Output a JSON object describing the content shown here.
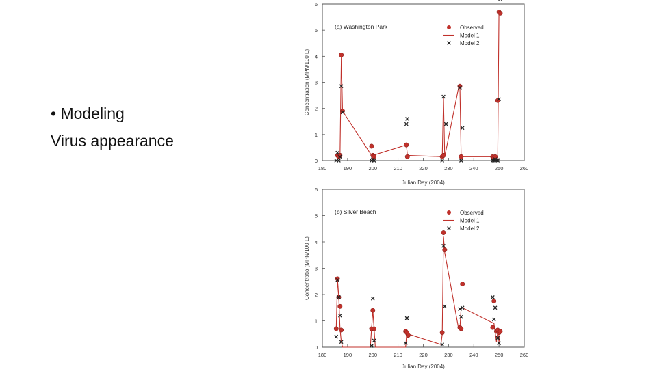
{
  "slide": {
    "bullet": "• Modeling",
    "subtitle": "Virus appearance"
  },
  "colors": {
    "observed": "#c0312b",
    "model1": "#c0312b",
    "model2": "#222222"
  },
  "chart_data": [
    {
      "type": "scatter",
      "title": "(a) Washington Park",
      "xlabel": "Julian Day (2004)",
      "ylabel": "Concentration (MPN/100 L)",
      "xlim": [
        180,
        260
      ],
      "ylim": [
        0,
        6
      ],
      "xticks": [
        180,
        190,
        200,
        210,
        220,
        230,
        240,
        250,
        260
      ],
      "yticks": [
        0,
        1,
        2,
        3,
        4,
        5,
        6
      ],
      "legend": [
        "Observed",
        "Model 1",
        "Model 2"
      ],
      "legend_position": "top-right",
      "series": [
        {
          "name": "Observed",
          "kind": "points",
          "x": [
            186,
            186.5,
            187,
            187.5,
            188,
            199.5,
            200,
            200.5,
            213.3,
            213.7,
            227.5,
            228,
            234.5,
            235,
            247.5,
            248,
            248.5,
            249.5,
            250,
            250.5
          ],
          "y": [
            0.2,
            0.15,
            0.2,
            4.05,
            1.9,
            0.55,
            0.2,
            0.15,
            0.6,
            0.15,
            0.15,
            0.2,
            2.85,
            0.15,
            0.15,
            0.1,
            0.15,
            2.3,
            5.7,
            5.65
          ]
        },
        {
          "name": "Model 1",
          "kind": "line",
          "x": [
            186,
            187,
            187.5,
            188,
            199.5,
            200,
            213.3,
            213.7,
            227.5,
            228,
            228.5,
            234,
            234.5,
            235,
            247.5,
            249.5,
            250,
            250.5
          ],
          "y": [
            0.2,
            0.2,
            4.0,
            1.9,
            0.2,
            0.2,
            0.6,
            0.2,
            0.15,
            2.4,
            0.15,
            2.8,
            2.85,
            0.15,
            0.15,
            0.1,
            5.7,
            5.7
          ]
        },
        {
          "name": "Model 2",
          "kind": "x",
          "x": [
            185.5,
            186,
            186.5,
            187,
            187.5,
            188,
            199.5,
            200,
            200.5,
            213.3,
            213.6,
            227.5,
            228,
            229,
            234.5,
            235,
            235.5,
            247.5,
            248,
            248.5,
            249,
            249.5,
            250,
            250.5
          ],
          "y": [
            0,
            0.3,
            0,
            0.15,
            2.85,
            1.85,
            0,
            0.05,
            0,
            1.4,
            1.6,
            0,
            2.45,
            1.4,
            2.8,
            0,
            1.25,
            0,
            0,
            0.05,
            0,
            0,
            2.35,
            6.2
          ]
        }
      ]
    },
    {
      "type": "scatter",
      "title": "(b) Silver Beach",
      "xlabel": "Julian Day (2004)",
      "ylabel": "Concentratio (MPN/100 L)",
      "xlim": [
        180,
        260
      ],
      "ylim": [
        0,
        6
      ],
      "xticks": [
        180,
        190,
        200,
        210,
        220,
        230,
        240,
        250,
        260
      ],
      "yticks": [
        0,
        1,
        2,
        3,
        4,
        5,
        6
      ],
      "legend": [
        "Observed",
        "Model 1",
        "Model 2"
      ],
      "legend_position": "top-right",
      "series": [
        {
          "name": "Observed",
          "kind": "points",
          "x": [
            185.5,
            186,
            186.5,
            187,
            187.5,
            199.5,
            200,
            200.5,
            213,
            213.5,
            214,
            227.5,
            228,
            228.5,
            234.5,
            235,
            235.5,
            247.5,
            248,
            249,
            249.5,
            250,
            250.5
          ],
          "y": [
            0.7,
            2.6,
            1.9,
            1.55,
            0.65,
            0.7,
            1.4,
            0.7,
            0.6,
            0.55,
            0.45,
            0.55,
            4.35,
            3.7,
            0.75,
            0.7,
            2.4,
            0.75,
            1.75,
            0.6,
            0.65,
            0.55,
            0.6
          ]
        },
        {
          "name": "Model 1",
          "kind": "line",
          "x": [
            185.5,
            186,
            186.5,
            187,
            187.5,
            188,
            199,
            199.5,
            200,
            200.5,
            201,
            213,
            213.5,
            214,
            227,
            227.5,
            228,
            228.5,
            234,
            234.5,
            235,
            235.5,
            248,
            249,
            249.5,
            250,
            250.5
          ],
          "y": [
            0.7,
            2.6,
            1.9,
            0.7,
            0.2,
            0,
            0,
            0.7,
            1.4,
            0.7,
            0,
            0,
            0.6,
            0.5,
            0.1,
            0.5,
            4.2,
            3.6,
            0.7,
            0.7,
            1.5,
            1.5,
            0.9,
            0.2,
            0.6,
            0.2,
            0.6
          ]
        },
        {
          "name": "Model 2",
          "kind": "x",
          "x": [
            185.5,
            186,
            186.5,
            187,
            187.5,
            199.5,
            200,
            200.5,
            213,
            213.5,
            227.5,
            228,
            228.5,
            234.5,
            235,
            235.5,
            247.5,
            248,
            248.5,
            249.5,
            250
          ],
          "y": [
            0.4,
            2.55,
            1.9,
            1.2,
            0.2,
            0.05,
            1.85,
            0.25,
            0.15,
            1.1,
            0.1,
            3.85,
            1.55,
            1.45,
            1.15,
            1.5,
            1.9,
            1.05,
            1.5,
            0.35,
            0.15
          ]
        }
      ]
    }
  ]
}
